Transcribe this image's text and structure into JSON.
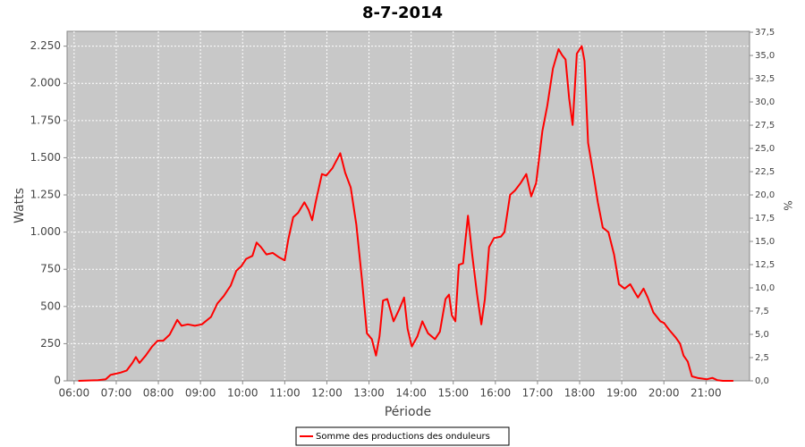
{
  "chart_data": {
    "type": "line",
    "title": "8-7-2014",
    "x_label": "Période",
    "y_label": "Watts",
    "y2_label": "%",
    "x": [
      "06:06",
      "06:34",
      "06:45",
      "06:52",
      "07:06",
      "07:15",
      "07:23",
      "07:28",
      "07:33",
      "07:42",
      "07:51",
      "07:59",
      "08:07",
      "08:16",
      "08:27",
      "08:33",
      "08:42",
      "08:52",
      "09:02",
      "09:15",
      "09:24",
      "09:33",
      "09:43",
      "09:51",
      "09:58",
      "10:05",
      "10:14",
      "10:20",
      "10:26",
      "10:34",
      "10:43",
      "10:52",
      "11:00",
      "11:05",
      "11:12",
      "11:19",
      "11:28",
      "11:34",
      "11:39",
      "11:44",
      "11:53",
      "11:59",
      "12:08",
      "12:19",
      "12:26",
      "12:34",
      "12:42",
      "12:50",
      "12:57",
      "13:04",
      "13:10",
      "13:15",
      "13:20",
      "13:26",
      "13:35",
      "13:43",
      "13:50",
      "13:55",
      "14:01",
      "14:09",
      "14:16",
      "14:24",
      "14:34",
      "14:41",
      "14:49",
      "14:54",
      "14:58",
      "15:03",
      "15:08",
      "15:14",
      "15:21",
      "15:27",
      "15:34",
      "15:40",
      "15:45",
      "15:51",
      "15:58",
      "16:08",
      "16:13",
      "16:21",
      "16:28",
      "16:36",
      "16:44",
      "16:51",
      "16:58",
      "17:07",
      "17:14",
      "17:22",
      "17:30",
      "17:35",
      "17:40",
      "17:45",
      "17:50",
      "17:56",
      "18:03",
      "18:07",
      "18:12",
      "18:21",
      "18:26",
      "18:33",
      "18:41",
      "18:49",
      "18:56",
      "19:04",
      "19:12",
      "19:18",
      "19:23",
      "19:31",
      "19:37",
      "19:45",
      "19:55",
      "20:00",
      "20:08",
      "20:17",
      "20:23",
      "20:28",
      "20:34",
      "20:40",
      "20:48",
      "21:01",
      "21:09",
      "21:16",
      "21:24",
      "21:39"
    ],
    "series": [
      {
        "name": "Somme des productions des onduleurs",
        "color": "#ff0000",
        "values": [
          0,
          5,
          10,
          40,
          55,
          70,
          120,
          160,
          120,
          170,
          230,
          270,
          270,
          310,
          410,
          370,
          380,
          370,
          380,
          430,
          520,
          570,
          640,
          740,
          770,
          820,
          840,
          930,
          900,
          850,
          860,
          830,
          810,
          950,
          1100,
          1130,
          1200,
          1150,
          1080,
          1200,
          1390,
          1380,
          1430,
          1530,
          1400,
          1300,
          1050,
          680,
          320,
          280,
          170,
          300,
          540,
          550,
          400,
          480,
          560,
          350,
          230,
          300,
          400,
          320,
          280,
          330,
          550,
          580,
          440,
          400,
          780,
          790,
          1110,
          850,
          580,
          380,
          550,
          900,
          960,
          970,
          1000,
          1250,
          1280,
          1330,
          1390,
          1240,
          1330,
          1680,
          1850,
          2100,
          2230,
          2190,
          2160,
          1900,
          1720,
          2200,
          2250,
          2150,
          1600,
          1350,
          1200,
          1030,
          1000,
          850,
          650,
          620,
          650,
          600,
          560,
          620,
          560,
          460,
          400,
          390,
          340,
          290,
          250,
          170,
          130,
          30,
          20,
          10,
          20,
          5,
          0,
          0
        ]
      }
    ],
    "xlim": [
      "05:50",
      "22:02"
    ],
    "xticks": [
      "06:00",
      "07:00",
      "08:00",
      "09:00",
      "10:00",
      "11:00",
      "12:00",
      "13:00",
      "14:00",
      "15:00",
      "16:00",
      "17:00",
      "18:00",
      "19:00",
      "20:00",
      "21:00"
    ],
    "ylim": [
      0,
      2350
    ],
    "yticks": [
      0,
      250,
      500,
      750,
      {
        "value": 1000,
        "label": "1.000"
      },
      {
        "value": 1250,
        "label": "1.250"
      },
      {
        "value": 1500,
        "label": "1.500"
      },
      {
        "value": 1750,
        "label": "1.750"
      },
      {
        "value": 2000,
        "label": "2.000"
      },
      {
        "value": 2250,
        "label": "2.250"
      }
    ],
    "y2lim": [
      0,
      37.6
    ],
    "y2ticks": [
      {
        "value": 0,
        "label": "0,0"
      },
      {
        "value": 2.5,
        "label": "2,5"
      },
      {
        "value": 5,
        "label": "5,0"
      },
      {
        "value": 7.5,
        "label": "7,5"
      },
      {
        "value": 10,
        "label": "10,0"
      },
      {
        "value": 12.5,
        "label": "12,5"
      },
      {
        "value": 15,
        "label": "15,0"
      },
      {
        "value": 17.5,
        "label": "17,5"
      },
      {
        "value": 20,
        "label": "20,0"
      },
      {
        "value": 22.5,
        "label": "22,5"
      },
      {
        "value": 25,
        "label": "25,0"
      },
      {
        "value": 27.5,
        "label": "27,5"
      },
      {
        "value": 30,
        "label": "30,0"
      },
      {
        "value": 32.5,
        "label": "32,5"
      },
      {
        "value": 35,
        "label": "35,0"
      },
      {
        "value": 37.5,
        "label": "37,5"
      }
    ],
    "grid": true,
    "legend": "bottom"
  }
}
